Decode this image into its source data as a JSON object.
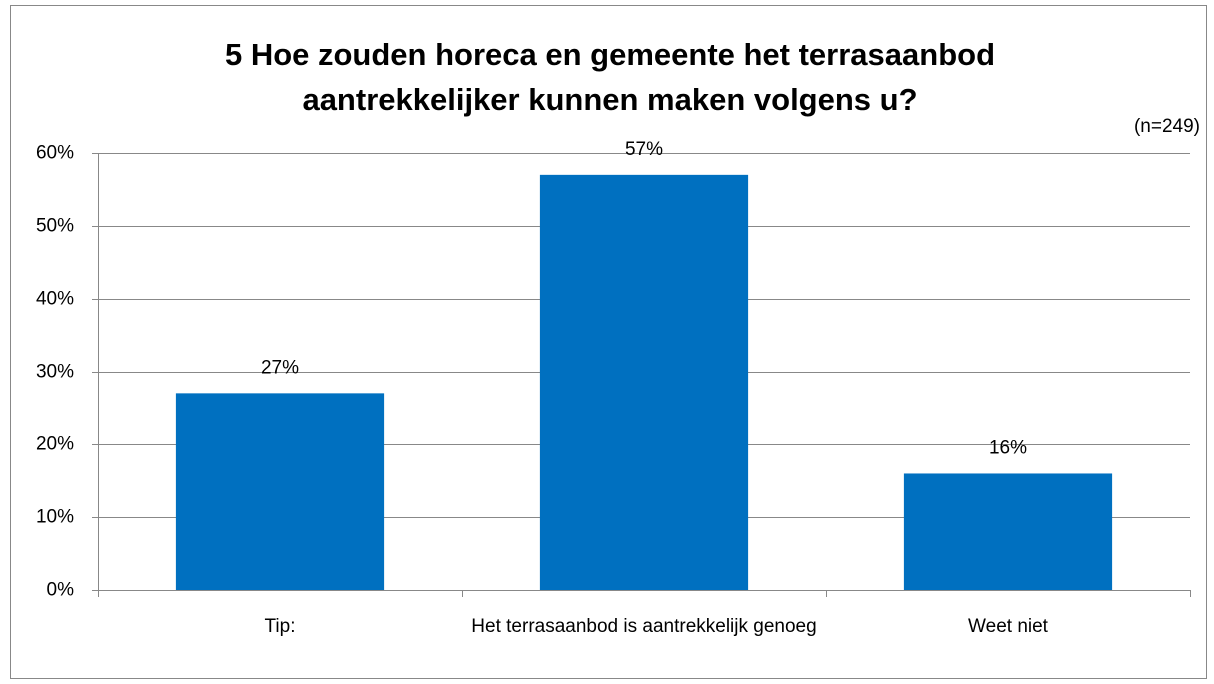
{
  "chart_data": {
    "type": "bar",
    "title": "5 Hoe zouden horeca en gemeente het terrasaanbod aantrekkelijker kunnen maken volgens u?",
    "annotation": "(n=249)",
    "categories": [
      "Tip:",
      "Het terrasaanbod is aantrekkelijk genoeg",
      "Weet niet"
    ],
    "values": [
      27,
      57,
      16
    ],
    "value_labels": [
      "27%",
      "57%",
      "16%"
    ],
    "color": "#0070c0",
    "ylim": [
      0,
      60
    ],
    "yticks": [
      {
        "value": 0,
        "label": "0%"
      },
      {
        "value": 10,
        "label": "10%"
      },
      {
        "value": 20,
        "label": "20%"
      },
      {
        "value": 30,
        "label": "30%"
      },
      {
        "value": 40,
        "label": "40%"
      },
      {
        "value": 50,
        "label": "50%"
      },
      {
        "value": 60,
        "label": "60%"
      }
    ],
    "grid": true
  }
}
